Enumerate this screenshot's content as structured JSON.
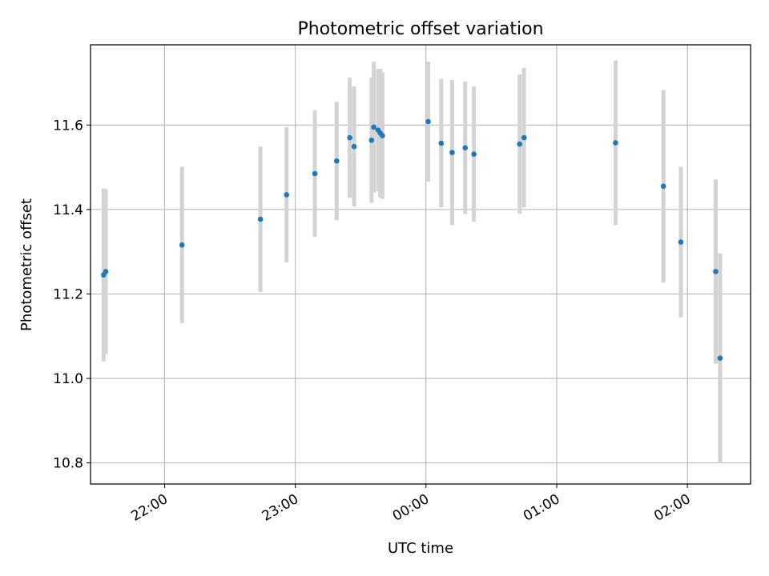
{
  "chart_data": {
    "type": "scatter",
    "title": "Photometric offset variation",
    "xlabel": "UTC time",
    "ylabel": "Photometric offset",
    "x_axis_type": "time",
    "xlim": [
      "21:26",
      "02:29"
    ],
    "ylim": [
      10.75,
      11.79
    ],
    "x_ticks": [
      "22:00",
      "23:00",
      "00:00",
      "01:00",
      "02:00"
    ],
    "y_ticks": [
      "10.8",
      "11.0",
      "11.2",
      "11.4",
      "11.6"
    ],
    "grid": true,
    "legend": "none",
    "marker_color": "#1f77b4",
    "errorbar_color": "#d3d3d3",
    "points": [
      {
        "t": "21:32",
        "y": 11.245,
        "err": 0.205
      },
      {
        "t": "21:33",
        "y": 11.253,
        "err": 0.195
      },
      {
        "t": "22:08",
        "y": 11.316,
        "err": 0.185
      },
      {
        "t": "22:44",
        "y": 11.377,
        "err": 0.172
      },
      {
        "t": "22:56",
        "y": 11.435,
        "err": 0.16
      },
      {
        "t": "23:09",
        "y": 11.485,
        "err": 0.15
      },
      {
        "t": "23:19",
        "y": 11.515,
        "err": 0.14
      },
      {
        "t": "23:25",
        "y": 11.57,
        "err": 0.142
      },
      {
        "t": "23:27",
        "y": 11.549,
        "err": 0.142
      },
      {
        "t": "23:35",
        "y": 11.564,
        "err": 0.148
      },
      {
        "t": "23:36",
        "y": 11.595,
        "err": 0.155
      },
      {
        "t": "23:38",
        "y": 11.588,
        "err": 0.145
      },
      {
        "t": "23:39",
        "y": 11.581,
        "err": 0.152
      },
      {
        "t": "23:40",
        "y": 11.575,
        "err": 0.15
      },
      {
        "t": "00:01",
        "y": 11.608,
        "err": 0.142
      },
      {
        "t": "00:07",
        "y": 11.557,
        "err": 0.152
      },
      {
        "t": "00:12",
        "y": 11.535,
        "err": 0.172
      },
      {
        "t": "00:18",
        "y": 11.546,
        "err": 0.157
      },
      {
        "t": "00:22",
        "y": 11.531,
        "err": 0.16
      },
      {
        "t": "00:43",
        "y": 11.555,
        "err": 0.165
      },
      {
        "t": "00:45",
        "y": 11.57,
        "err": 0.165
      },
      {
        "t": "01:27",
        "y": 11.558,
        "err": 0.195
      },
      {
        "t": "01:49",
        "y": 11.455,
        "err": 0.228
      },
      {
        "t": "01:57",
        "y": 11.323,
        "err": 0.178
      },
      {
        "t": "02:13",
        "y": 11.253,
        "err": 0.218
      },
      {
        "t": "02:15",
        "y": 11.048,
        "err": 0.248
      }
    ]
  }
}
